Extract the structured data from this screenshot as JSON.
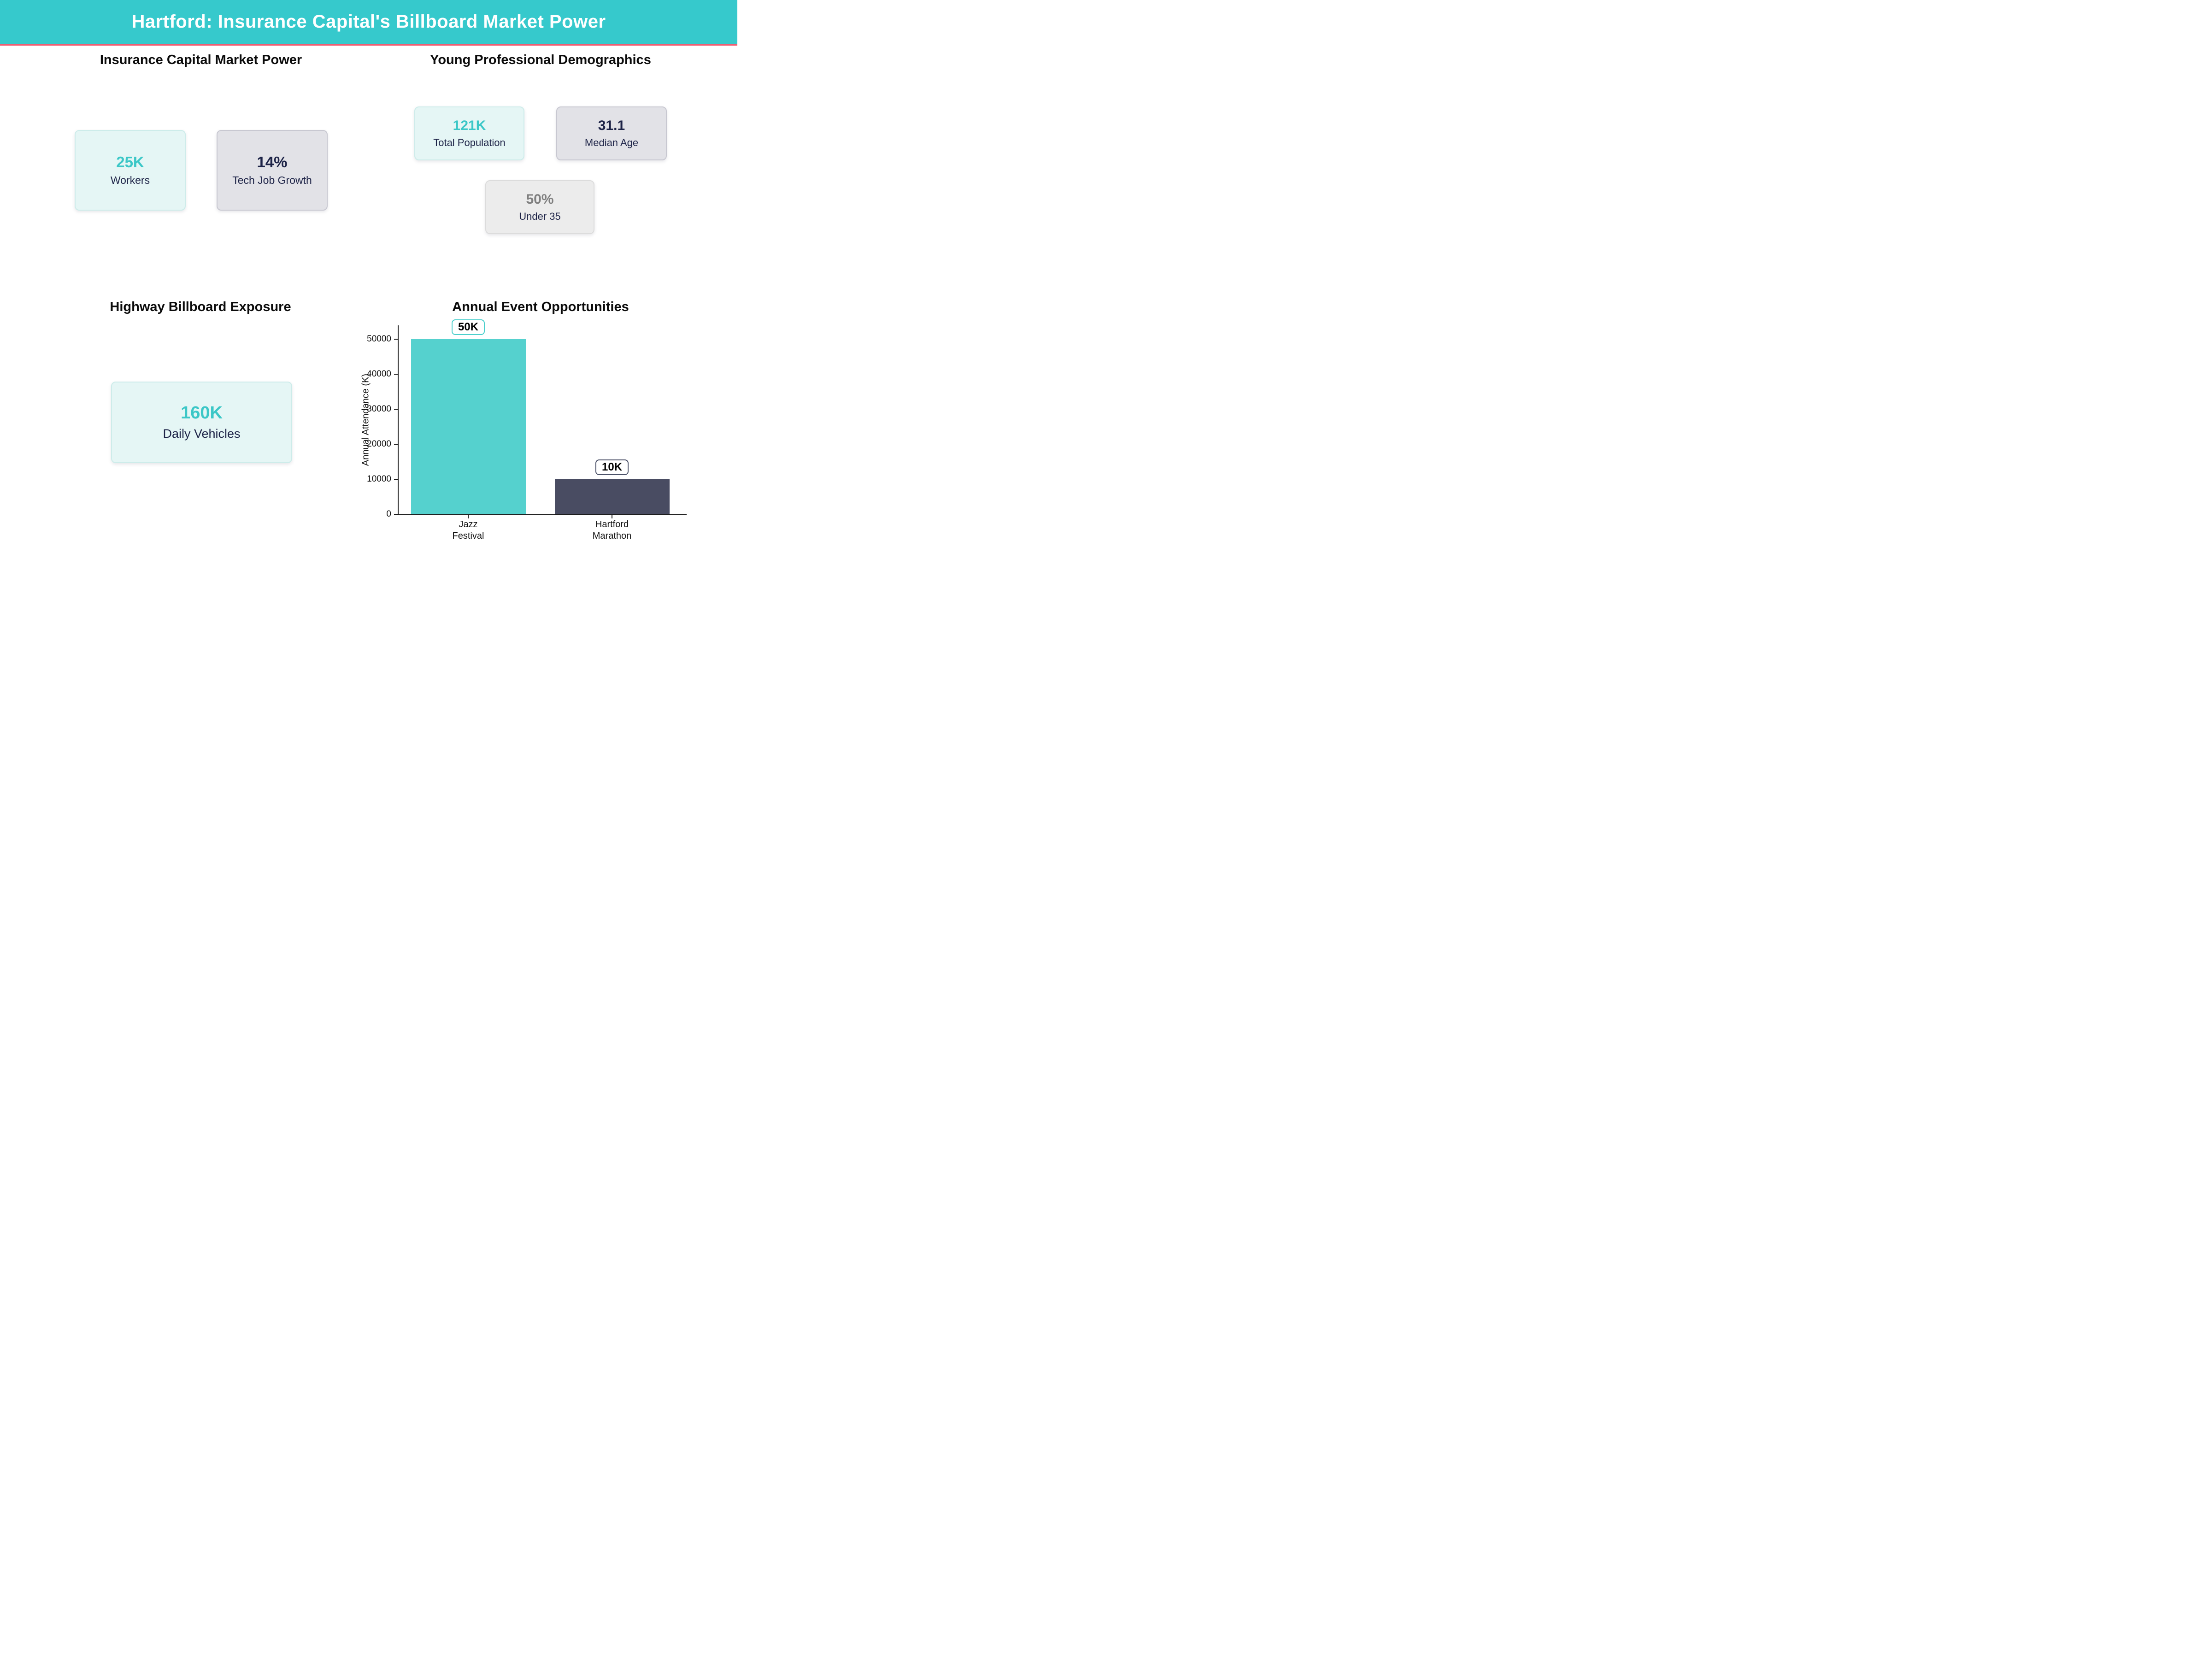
{
  "header": {
    "title": "Hartford: Insurance Capital's Billboard Market Power",
    "bg_color": "#36c9cc",
    "accent_color": "#f05f73"
  },
  "sections": {
    "market_power": {
      "title": "Insurance Capital Market Power",
      "cards": [
        {
          "value": "25K",
          "label": "Workers",
          "value_color": "#3bc7c7"
        },
        {
          "value": "14%",
          "label": "Tech Job Growth",
          "value_color": "#1d2347"
        }
      ]
    },
    "demographics": {
      "title": "Young Professional Demographics",
      "cards": [
        {
          "value": "121K",
          "label": "Total Population",
          "value_color": "#3bc7c7"
        },
        {
          "value": "31.1",
          "label": "Median Age",
          "value_color": "#1d2347"
        },
        {
          "value": "50%",
          "label": "Under 35",
          "value_color": "#7f7f7f"
        }
      ]
    },
    "highway": {
      "title": "Highway Billboard Exposure",
      "cards": [
        {
          "value": "160K",
          "label": "Daily Vehicles",
          "value_color": "#3bc7c7"
        }
      ]
    },
    "events": {
      "title": "Annual Event Opportunities"
    }
  },
  "chart_data": {
    "type": "bar",
    "title": "Annual Event Opportunities",
    "categories": [
      "Jazz\nFestival",
      "Hartford\nMarathon"
    ],
    "values": [
      50000,
      10000
    ],
    "bar_labels": [
      "50K",
      "10K"
    ],
    "bar_colors": [
      "#55d1ce",
      "#494c62"
    ],
    "label_border_colors": [
      "#4ccfcc",
      "#4b5168"
    ],
    "ylabel": "Annual Attendance (K)",
    "yticks": [
      0,
      10000,
      20000,
      30000,
      40000,
      50000
    ],
    "ylim": [
      0,
      52000
    ],
    "grid": false,
    "legend": false
  }
}
